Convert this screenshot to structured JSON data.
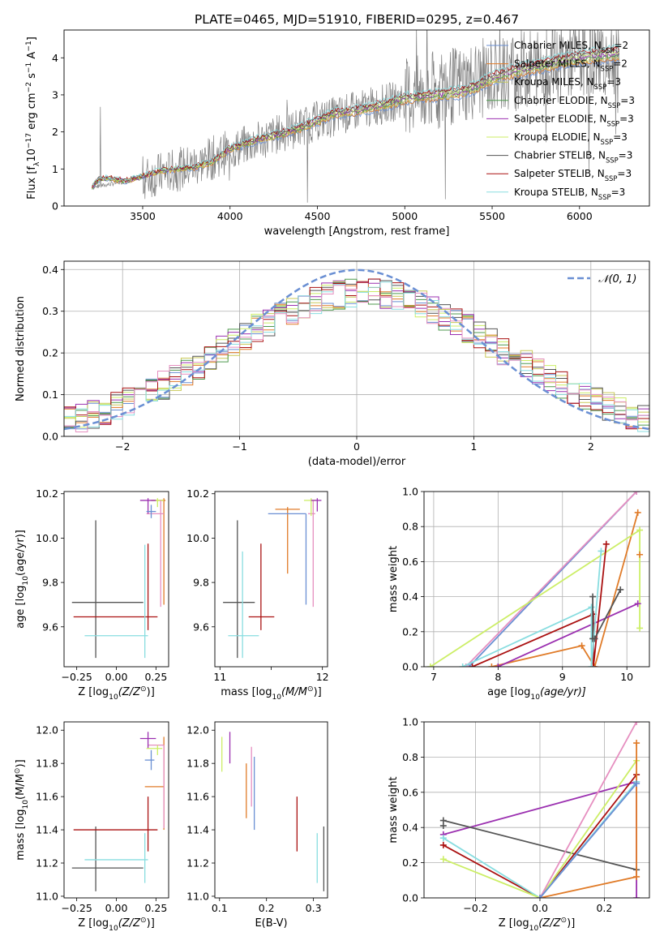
{
  "figure": {
    "title": "PLATE=0465, MJD=51910, FIBERID=0295, z=0.467"
  },
  "series_colors": {
    "Chabrier MILES": "#6a8fd3",
    "Salpeter MILES": "#e07b28",
    "Kroupa MILES": "#c9c958",
    "Chabrier ELODIE": "#4f9a4f",
    "Salpeter ELODIE": "#9b30b0",
    "Kroupa ELODIE": "#ccee66",
    "Chabrier STELIB": "#555555",
    "Salpeter STELIB": "#aa1111",
    "Kroupa STELIB": "#88dde0",
    "pink": "#e68fc0",
    "data": "#808080"
  },
  "chart_data": [
    {
      "id": "spectrum",
      "type": "line",
      "xlabel": "wavelength [Angstrom, rest frame]",
      "ylabel_parts": [
        "Flux [f",
        "λ",
        "10",
        "−17",
        " erg cm",
        "−2",
        " s",
        "−1",
        " A",
        "−1",
        "]"
      ],
      "xlim": [
        3050,
        6400
      ],
      "ylim": [
        0,
        4.75
      ],
      "xticks": [
        3500,
        4000,
        4500,
        5000,
        5500,
        6000
      ],
      "yticks": [
        0,
        1,
        2,
        3,
        4
      ],
      "legend_position": "top-right",
      "legend": [
        {
          "prefix": "Chabrier MILES, N",
          "sub": "SSP",
          "suffix": "=2",
          "color_key": "Chabrier MILES"
        },
        {
          "prefix": "Salpeter MILES, N",
          "sub": "SSP",
          "suffix": "=2",
          "color_key": "Salpeter MILES"
        },
        {
          "prefix": "Kroupa MILES, N",
          "sub": "SSP",
          "suffix": "=3",
          "color_key": "Kroupa MILES"
        },
        {
          "prefix": "Chabrier ELODIE, N",
          "sub": "SSP",
          "suffix": "=3",
          "color_key": "Chabrier ELODIE"
        },
        {
          "prefix": "Salpeter ELODIE, N",
          "sub": "SSP",
          "suffix": "=3",
          "color_key": "Salpeter ELODIE"
        },
        {
          "prefix": "Kroupa ELODIE, N",
          "sub": "SSP",
          "suffix": "=3",
          "color_key": "Kroupa ELODIE"
        },
        {
          "prefix": "Chabrier STELIB, N",
          "sub": "SSP",
          "suffix": "=3",
          "color_key": "Chabrier STELIB"
        },
        {
          "prefix": "Salpeter STELIB, N",
          "sub": "SSP",
          "suffix": "=3",
          "color_key": "Salpeter STELIB"
        },
        {
          "prefix": "Kroupa STELIB, N",
          "sub": "SSP",
          "suffix": "=3",
          "color_key": "Kroupa STELIB"
        }
      ],
      "model_continuum": [
        [
          3210,
          0.52
        ],
        [
          3250,
          0.72
        ],
        [
          3300,
          0.75
        ],
        [
          3400,
          0.68
        ],
        [
          3500,
          0.8
        ],
        [
          3600,
          0.95
        ],
        [
          3700,
          1.0
        ],
        [
          3800,
          1.05
        ],
        [
          3900,
          1.2
        ],
        [
          4000,
          1.55
        ],
        [
          4100,
          1.7
        ],
        [
          4200,
          1.85
        ],
        [
          4300,
          1.95
        ],
        [
          4400,
          2.1
        ],
        [
          4500,
          2.3
        ],
        [
          4600,
          2.5
        ],
        [
          4700,
          2.55
        ],
        [
          4800,
          2.65
        ],
        [
          4900,
          2.75
        ],
        [
          5000,
          2.9
        ],
        [
          5100,
          2.95
        ],
        [
          5200,
          3.0
        ],
        [
          5300,
          3.05
        ],
        [
          5400,
          3.2
        ],
        [
          5500,
          3.45
        ],
        [
          5600,
          3.6
        ],
        [
          5700,
          3.7
        ],
        [
          5800,
          3.8
        ],
        [
          5900,
          3.9
        ],
        [
          6000,
          4.0
        ],
        [
          6100,
          4.05
        ],
        [
          6200,
          4.1
        ]
      ],
      "data_envelope": [
        [
          3210,
          0.5
        ],
        [
          3500,
          0.75
        ],
        [
          3800,
          1.1
        ],
        [
          4000,
          1.5
        ],
        [
          4500,
          2.3
        ],
        [
          5000,
          2.9
        ],
        [
          5500,
          3.5
        ],
        [
          6000,
          4.0
        ],
        [
          6230,
          4.1
        ]
      ]
    },
    {
      "id": "residuals",
      "type": "histogram",
      "xlabel": "(data-model)/error",
      "ylabel": "Normed distribution",
      "xlim": [
        -2.5,
        2.5
      ],
      "ylim": [
        0,
        0.42
      ],
      "xticks": [
        -2,
        -1,
        0,
        1,
        2
      ],
      "yticks": [
        0.0,
        0.1,
        0.2,
        0.3,
        0.4
      ],
      "grid": true,
      "legend_position": "top-right",
      "legend_label": "𝒩(0, 1)",
      "reference_curve": "standard normal pdf",
      "bin_width": 0.1
    },
    {
      "id": "age-vs-Z",
      "type": "errorbar",
      "xlabel_parts": [
        "Z [log",
        "10",
        "(Z/Z",
        "⊙",
        ")]"
      ],
      "ylabel_parts": [
        "age  [log",
        "10",
        "(age/yr)]"
      ],
      "xlim": [
        -0.33,
        0.33
      ],
      "ylim": [
        9.42,
        10.21
      ],
      "xticks": [
        -0.25,
        0.0,
        0.25
      ],
      "yticks": [
        9.6,
        9.8,
        10.0,
        10.2
      ],
      "points": [
        {
          "key": "Chabrier STELIB",
          "x": -0.13,
          "y": 9.71,
          "xerr": [
            0.15,
            0.3
          ],
          "yerr": [
            0.25,
            0.37
          ]
        },
        {
          "key": "Salpeter STELIB",
          "x": 0.2,
          "y": 9.645,
          "xerr": [
            0.47,
            0.06
          ],
          "yerr": [
            0.06,
            0.33
          ]
        },
        {
          "key": "Kroupa STELIB",
          "x": 0.18,
          "y": 9.56,
          "xerr": [
            0.38,
            0.02
          ],
          "yerr": [
            0.1,
            0.41
          ]
        },
        {
          "key": "Salpeter MILES",
          "x": 0.3,
          "y": 10.17,
          "xerr": [
            0.08,
            0.01
          ],
          "yerr": [
            0.47,
            0.01
          ]
        },
        {
          "key": "Kroupa ELODIE",
          "x": 0.26,
          "y": 10.17,
          "xerr": [
            0.04,
            0.04
          ],
          "yerr": [
            0.03,
            0.01
          ]
        },
        {
          "key": "pink",
          "x": 0.28,
          "y": 10.11,
          "xerr": [
            0.09,
            0.02
          ],
          "yerr": [
            0.42,
            0.06
          ]
        },
        {
          "key": "Salpeter ELODIE",
          "x": 0.2,
          "y": 10.17,
          "xerr": [
            0.05,
            0.05
          ],
          "yerr": [
            0.06,
            0.01
          ]
        },
        {
          "key": "Chabrier MILES",
          "x": 0.22,
          "y": 10.12,
          "xerr": [
            0.03,
            0.03
          ],
          "yerr": [
            0.03,
            0.03
          ]
        }
      ]
    },
    {
      "id": "age-vs-mass",
      "type": "errorbar",
      "xlabel_parts": [
        "mass [log",
        "10",
        "(M/M",
        "⊙",
        ")]"
      ],
      "xlim": [
        10.95,
        12.05
      ],
      "ylim": [
        9.42,
        10.21
      ],
      "xticks": [
        11,
        11.5,
        12
      ],
      "xticklabels": [
        "11",
        "",
        "12"
      ],
      "yticks": [
        9.6,
        9.8,
        10.0,
        10.2
      ],
      "points": [
        {
          "key": "Chabrier STELIB",
          "x": 11.17,
          "y": 9.71,
          "xerr": [
            0.14,
            0.17
          ],
          "yerr": [
            0.25,
            0.37
          ]
        },
        {
          "key": "Salpeter STELIB",
          "x": 11.4,
          "y": 9.645,
          "xerr": [
            0.12,
            0.13
          ],
          "yerr": [
            0.06,
            0.33
          ]
        },
        {
          "key": "Kroupa STELIB",
          "x": 11.22,
          "y": 9.56,
          "xerr": [
            0.14,
            0.16
          ],
          "yerr": [
            0.1,
            0.38
          ]
        },
        {
          "key": "Salpeter MILES",
          "x": 11.66,
          "y": 10.13,
          "xerr": [
            0.12,
            0.12
          ],
          "yerr": [
            0.29,
            0.01
          ]
        },
        {
          "key": "Chabrier MILES",
          "x": 11.84,
          "y": 10.11,
          "xerr": [
            0.37,
            0.0
          ],
          "yerr": [
            0.41,
            0.0
          ]
        },
        {
          "key": "pink",
          "x": 11.91,
          "y": 10.11,
          "xerr": [
            0.05,
            0.02
          ],
          "yerr": [
            0.42,
            0.06
          ]
        },
        {
          "key": "Kroupa ELODIE",
          "x": 11.89,
          "y": 10.17,
          "xerr": [
            0.07,
            0.05
          ],
          "yerr": [
            0.07,
            0.01
          ]
        },
        {
          "key": "Salpeter ELODIE",
          "x": 11.95,
          "y": 10.17,
          "xerr": [
            0.06,
            0.04
          ],
          "yerr": [
            0.05,
            0.01
          ]
        }
      ]
    },
    {
      "id": "weight-vs-age",
      "type": "line",
      "xlabel_parts": [
        "age  [log",
        "10",
        "(age/yr)]"
      ],
      "ylabel": "mass weight",
      "xlim": [
        6.85,
        10.35
      ],
      "ylim": [
        0,
        1
      ],
      "xticks": [
        7,
        8,
        9,
        10
      ],
      "yticks": [
        0.0,
        0.2,
        0.4,
        0.6,
        0.8,
        1.0
      ],
      "grid": true,
      "lines": [
        {
          "key": "Chabrier MILES",
          "x": [
            7.55,
            10.15
          ],
          "y": [
            0.0,
            1.0
          ]
        },
        {
          "key": "pink",
          "x": [
            7.5,
            10.15
          ],
          "y": [
            0.0,
            1.0
          ]
        },
        {
          "key": "Salpeter MILES",
          "x": [
            7.9,
            9.3,
            9.5,
            10.17
          ],
          "y": [
            0.0,
            0.12,
            0.0,
            0.88
          ]
        },
        {
          "key": "Kroupa ELODIE",
          "x": [
            6.95,
            10.2,
            10.2
          ],
          "y": [
            0.0,
            0.78,
            0.22
          ]
        },
        {
          "key": "Salpeter ELODIE",
          "x": [
            8.0,
            10.17
          ],
          "y": [
            0.0,
            0.36
          ]
        },
        {
          "key": "Salpeter STELIB",
          "x": [
            7.6,
            9.48,
            9.48,
            9.68
          ],
          "y": [
            0.0,
            0.3,
            0.0,
            0.7
          ]
        },
        {
          "key": "Kroupa STELIB",
          "x": [
            7.45,
            9.45,
            9.45,
            9.6
          ],
          "y": [
            0.0,
            0.34,
            0.0,
            0.66
          ]
        },
        {
          "key": "Chabrier STELIB",
          "x": [
            9.47,
            9.47,
            9.5,
            9.9
          ],
          "y": [
            0.4,
            0.16,
            0.16,
            0.44
          ]
        },
        {
          "key": "Salpeter MILES",
          "x": [
            10.2
          ],
          "y": [
            0.64
          ]
        }
      ]
    },
    {
      "id": "mass-vs-Z",
      "type": "errorbar",
      "xlabel_parts": [
        "Z [log",
        "10",
        "(Z/Z",
        "⊙",
        ")]"
      ],
      "ylabel_parts": [
        "mass [log",
        "10",
        "(M/M",
        "⊙",
        ")]"
      ],
      "xlim": [
        -0.33,
        0.33
      ],
      "ylim": [
        10.99,
        12.05
      ],
      "xticks": [
        -0.25,
        0.0,
        0.25
      ],
      "yticks": [
        11.0,
        11.2,
        11.4,
        11.6,
        11.8,
        12.0
      ],
      "points": [
        {
          "key": "Chabrier STELIB",
          "x": -0.13,
          "y": 11.17,
          "xerr": [
            0.15,
            0.3
          ],
          "yerr": [
            0.14,
            0.25
          ]
        },
        {
          "key": "Salpeter STELIB",
          "x": 0.2,
          "y": 11.4,
          "xerr": [
            0.47,
            0.06
          ],
          "yerr": [
            0.13,
            0.2
          ]
        },
        {
          "key": "Kroupa STELIB",
          "x": 0.18,
          "y": 11.22,
          "xerr": [
            0.38,
            0.02
          ],
          "yerr": [
            0.14,
            0.16
          ]
        },
        {
          "key": "Salpeter MILES",
          "x": 0.3,
          "y": 11.66,
          "xerr": [
            0.12,
            0.0
          ],
          "yerr": [
            0.26,
            0.3
          ]
        },
        {
          "key": "pink",
          "x": 0.3,
          "y": 11.91,
          "xerr": [
            0.1,
            0.0
          ],
          "yerr": [
            0.5,
            0.0
          ]
        },
        {
          "key": "Salpeter ELODIE",
          "x": 0.2,
          "y": 11.95,
          "xerr": [
            0.05,
            0.05
          ],
          "yerr": [
            0.06,
            0.04
          ]
        },
        {
          "key": "Kroupa ELODIE",
          "x": 0.26,
          "y": 11.89,
          "xerr": [
            0.07,
            0.03
          ],
          "yerr": [
            0.04,
            0.02
          ]
        },
        {
          "key": "Chabrier MILES",
          "x": 0.22,
          "y": 11.82,
          "xerr": [
            0.04,
            0.02
          ],
          "yerr": [
            0.06,
            0.06
          ]
        }
      ]
    },
    {
      "id": "mass-vs-EBV",
      "type": "errorbar",
      "xlabel": "E(B-V)",
      "xlim": [
        0.09,
        0.33
      ],
      "ylim": [
        10.99,
        12.05
      ],
      "xticks": [
        0.1,
        0.2,
        0.3
      ],
      "yticks": [
        11.0,
        11.2,
        11.4,
        11.6,
        11.8,
        12.0
      ],
      "bars": [
        {
          "key": "Kroupa ELODIE",
          "x": 0.105,
          "y0": 11.75,
          "y1": 11.96
        },
        {
          "key": "Salpeter ELODIE",
          "x": 0.122,
          "y0": 11.8,
          "y1": 11.99
        },
        {
          "key": "Salpeter MILES",
          "x": 0.157,
          "y0": 11.47,
          "y1": 11.8
        },
        {
          "key": "pink",
          "x": 0.168,
          "y0": 11.54,
          "y1": 11.9
        },
        {
          "key": "Chabrier MILES",
          "x": 0.174,
          "y0": 11.4,
          "y1": 11.84
        },
        {
          "key": "Salpeter STELIB",
          "x": 0.265,
          "y0": 11.27,
          "y1": 11.6
        },
        {
          "key": "Kroupa STELIB",
          "x": 0.308,
          "y0": 11.08,
          "y1": 11.38
        },
        {
          "key": "Chabrier STELIB",
          "x": 0.322,
          "y0": 11.03,
          "y1": 11.42
        }
      ]
    },
    {
      "id": "weight-vs-Z",
      "type": "line",
      "xlabel_parts": [
        "Z [log",
        "10",
        "(Z/Z",
        "⊙",
        ")]"
      ],
      "ylabel": "mass weight",
      "xlim": [
        -0.36,
        0.34
      ],
      "ylim": [
        0,
        1
      ],
      "xticks": [
        -0.2,
        0.0,
        0.2
      ],
      "yticks": [
        0.0,
        0.2,
        0.4,
        0.6,
        0.8,
        1.0
      ],
      "grid": true,
      "lines": [
        {
          "key": "Salpeter ELODIE",
          "x": [
            -0.3,
            0.3,
            0.3
          ],
          "y": [
            0.36,
            0.66,
            0.0
          ]
        },
        {
          "key": "Chabrier STELIB",
          "x": [
            -0.3,
            0.3
          ],
          "y": [
            0.44,
            0.16
          ]
        },
        {
          "key": "Chabrier STELIB",
          "x": [
            -0.3
          ],
          "y": [
            0.41
          ]
        },
        {
          "key": "Salpeter STELIB",
          "x": [
            -0.3,
            0.0,
            0.3
          ],
          "y": [
            0.3,
            0.0,
            0.7
          ]
        },
        {
          "key": "Kroupa STELIB",
          "x": [
            -0.3,
            0.0,
            0.3
          ],
          "y": [
            0.34,
            0.0,
            0.66
          ]
        },
        {
          "key": "Kroupa ELODIE",
          "x": [
            -0.3,
            0.0,
            0.3
          ],
          "y": [
            0.22,
            0.0,
            0.78
          ]
        },
        {
          "key": "Salpeter MILES",
          "x": [
            0.0,
            0.3,
            0.3
          ],
          "y": [
            0.0,
            0.12,
            0.88
          ]
        },
        {
          "key": "pink",
          "x": [
            0.0,
            0.3
          ],
          "y": [
            0.0,
            1.0
          ]
        },
        {
          "key": "Chabrier MILES",
          "x": [
            0.0,
            0.3
          ],
          "y": [
            0.0,
            0.65
          ]
        }
      ]
    }
  ]
}
